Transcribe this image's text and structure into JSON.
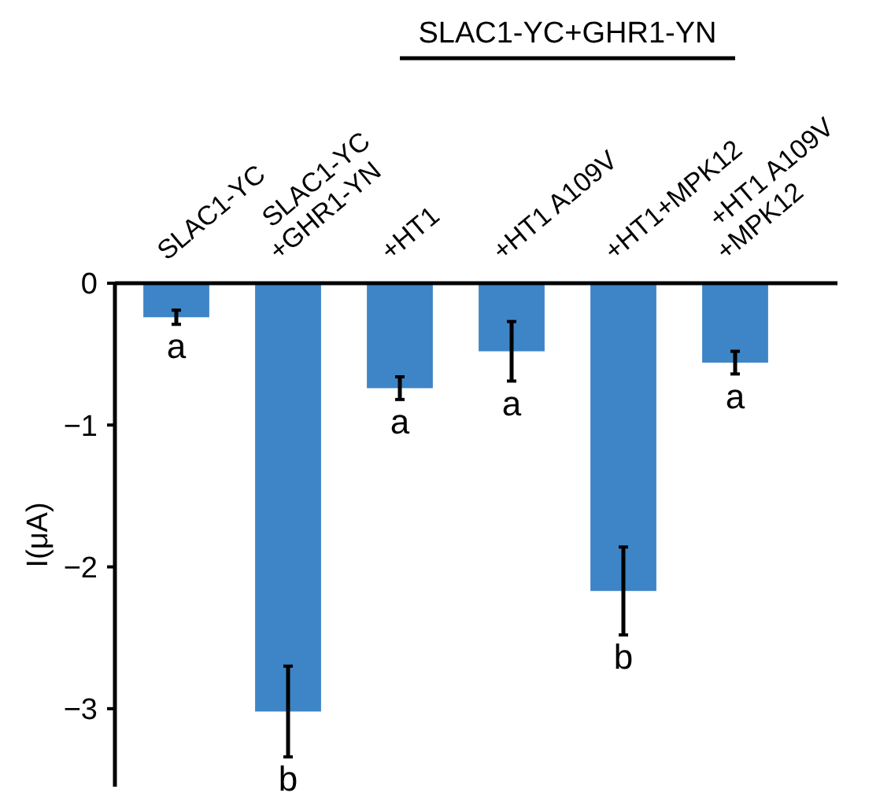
{
  "chart_data": {
    "type": "bar",
    "ylabel": "I(μA)",
    "categories": [
      "SLAC1-YC",
      "SLAC1-YC\n+GHR1-YN",
      "+HT1",
      "+HT1 A109V",
      "+HT1+MPK12",
      "+HT1 A109V\n+MPK12"
    ],
    "values": [
      -0.24,
      -3.02,
      -0.74,
      -0.48,
      -2.17,
      -0.56
    ],
    "errors": [
      0.05,
      0.32,
      0.08,
      0.21,
      0.31,
      0.08
    ],
    "color": "#3d85c6",
    "ylim": [
      -3.55,
      0
    ],
    "yticks": [
      {
        "value": 0,
        "label": "0"
      },
      {
        "value": -1,
        "label": "−1"
      },
      {
        "value": -2,
        "label": "−2"
      },
      {
        "value": -3,
        "label": "−3"
      }
    ],
    "grid": false,
    "annotations": [
      "SLAC1-YC+GHR1-YN",
      "a",
      "b",
      "a",
      "a",
      "b",
      "a"
    ]
  }
}
